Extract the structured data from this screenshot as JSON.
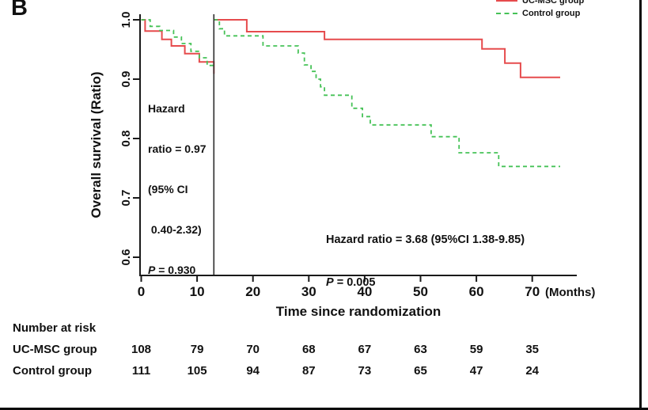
{
  "panel_label": "B",
  "annotation_landmark": {
    "line1": "Hazard",
    "line2": "ratio = 0.97",
    "line3": "(95% CI",
    "line4": " 0.40-2.32)",
    "p_italic": "P",
    "p_rest": " = 0.930"
  },
  "annotation_longterm": {
    "line1": "Hazard ratio = 3.68 (95%CI 1.38-9.85)",
    "p_italic": "P",
    "p_rest": " = 0.005"
  },
  "chart_data": {
    "type": "line",
    "subtype": "kaplan-meier-step",
    "title": "",
    "xlabel": "Time since randomization",
    "x_unit_label": "(Months)",
    "ylabel": "Overall survival (Ratio)",
    "x_ticks": [
      0,
      10,
      20,
      30,
      40,
      50,
      60,
      70
    ],
    "y_ticks": [
      1.0,
      0.9,
      0.8,
      0.7,
      0.6
    ],
    "xlim": [
      0,
      78
    ],
    "ylim": [
      0.57,
      1.0
    ],
    "grid": false,
    "legend_position": "top-right",
    "landmark_line_x_months": 13,
    "axis_color": "#1a1a1a",
    "landmark_line_color": "#2e2e2e",
    "series": [
      {
        "name": "UC-MSC group",
        "color": "#e64b4d",
        "style": "solid",
        "segments": [
          [
            [
              0,
              1.0
            ],
            [
              0.7,
              1.0
            ],
            [
              0.7,
              0.981
            ],
            [
              3.7,
              0.981
            ],
            [
              3.7,
              0.967
            ],
            [
              5.4,
              0.967
            ],
            [
              5.4,
              0.956
            ],
            [
              7.8,
              0.956
            ],
            [
              7.8,
              0.943
            ],
            [
              10.4,
              0.943
            ],
            [
              10.4,
              0.929
            ],
            [
              13,
              0.929
            ],
            [
              13,
              0.909
            ]
          ],
          [
            [
              13,
              1.0
            ],
            [
              18.9,
              1.0
            ],
            [
              18.9,
              0.98
            ],
            [
              32.8,
              0.98
            ],
            [
              32.8,
              0.967
            ],
            [
              61.0,
              0.967
            ],
            [
              61.0,
              0.951
            ],
            [
              65.1,
              0.951
            ],
            [
              65.1,
              0.927
            ],
            [
              67.9,
              0.927
            ],
            [
              67.9,
              0.903
            ],
            [
              75,
              0.903
            ]
          ]
        ]
      },
      {
        "name": "Control group",
        "color": "#46c257",
        "style": "dashed",
        "segments": [
          [
            [
              0,
              1.0
            ],
            [
              1.6,
              1.0
            ],
            [
              1.6,
              0.989
            ],
            [
              3.3,
              0.989
            ],
            [
              3.3,
              0.982
            ],
            [
              5.8,
              0.982
            ],
            [
              5.8,
              0.971
            ],
            [
              7.2,
              0.971
            ],
            [
              7.2,
              0.96
            ],
            [
              8.9,
              0.96
            ],
            [
              8.9,
              0.947
            ],
            [
              10.4,
              0.947
            ],
            [
              10.4,
              0.936
            ],
            [
              11.8,
              0.936
            ],
            [
              11.8,
              0.923
            ],
            [
              13,
              0.923
            ]
          ],
          [
            [
              13,
              1.0
            ],
            [
              14.0,
              1.0
            ],
            [
              14.0,
              0.985
            ],
            [
              14.9,
              0.985
            ],
            [
              14.9,
              0.973
            ],
            [
              21.8,
              0.973
            ],
            [
              21.8,
              0.956
            ],
            [
              28.1,
              0.956
            ],
            [
              28.1,
              0.944
            ],
            [
              29.2,
              0.944
            ],
            [
              29.2,
              0.924
            ],
            [
              30.4,
              0.924
            ],
            [
              30.4,
              0.913
            ],
            [
              31.3,
              0.913
            ],
            [
              31.3,
              0.9
            ],
            [
              32.1,
              0.9
            ],
            [
              32.1,
              0.887
            ],
            [
              32.8,
              0.887
            ],
            [
              32.8,
              0.873
            ],
            [
              37.7,
              0.873
            ],
            [
              37.7,
              0.851
            ],
            [
              39.6,
              0.851
            ],
            [
              39.6,
              0.837
            ],
            [
              41.0,
              0.837
            ],
            [
              41.0,
              0.823
            ],
            [
              51.9,
              0.823
            ],
            [
              51.9,
              0.803
            ],
            [
              56.9,
              0.803
            ],
            [
              56.9,
              0.776
            ],
            [
              64.0,
              0.776
            ],
            [
              64.0,
              0.753
            ],
            [
              75,
              0.753
            ]
          ]
        ]
      }
    ],
    "number_at_risk": {
      "title": "Number at risk",
      "time_points": [
        0,
        10,
        20,
        30,
        40,
        50,
        60,
        70
      ],
      "rows": [
        {
          "label": "UC-MSC  group",
          "values": [
            108,
            79,
            70,
            68,
            67,
            63,
            59,
            35
          ]
        },
        {
          "label": "Control group",
          "values": [
            111,
            105,
            94,
            87,
            73,
            65,
            47,
            24
          ]
        }
      ]
    }
  }
}
